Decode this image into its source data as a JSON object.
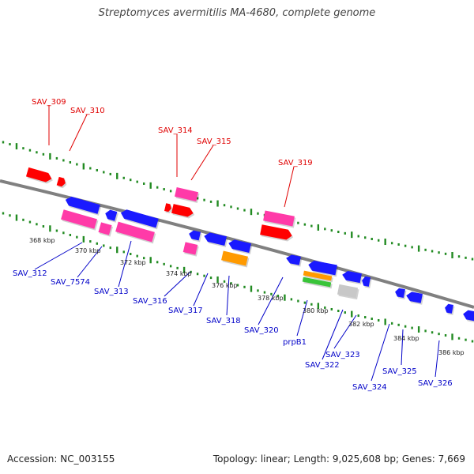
{
  "title": "Streptomyces avermitilis MA-4680, complete genome",
  "footer": {
    "accession": "Accession: NC_003155",
    "summary": "Topology: linear; Length: 9,025,608 bp; Genes: 7,669"
  },
  "colors": {
    "backbone": "#808080",
    "ticks": "#228b22",
    "label_top": "#e00000",
    "label_bottom": "#0000c8",
    "red_gene": "#ff0000",
    "pink_gene": "#ff3aa8",
    "blue_gene": "#1a1aff",
    "orange_gene": "#ff9a00",
    "green_gene": "#39c439",
    "grey_gene": "#c8c8c8"
  },
  "scale_labels": [
    "368 kbp",
    "370 kbp",
    "372 kbp",
    "374 kbp",
    "376 kbp",
    "378 kbp",
    "380 kbp",
    "382 kbp",
    "384 kbp",
    "386 kbp"
  ],
  "top_labels": [
    "SAV_309",
    "SAV_310",
    "SAV_314",
    "SAV_315",
    "SAV_319"
  ],
  "bottom_labels": [
    "SAV_312",
    "SAV_7574",
    "SAV_313",
    "SAV_316",
    "SAV_317",
    "SAV_318",
    "SAV_320",
    "prpB1",
    "SAV_322",
    "SAV_323",
    "SAV_324",
    "SAV_325",
    "SAV_326"
  ]
}
